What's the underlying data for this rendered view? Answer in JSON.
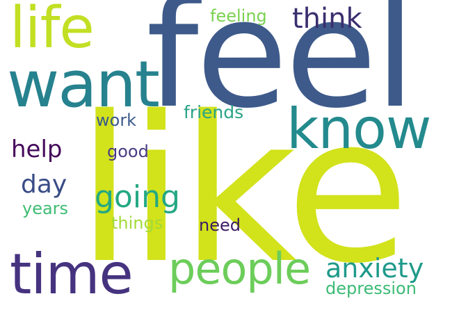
{
  "cloud": {
    "words": [
      {
        "id": "like",
        "text": "like",
        "color": "#d2e21b"
      },
      {
        "id": "feel",
        "text": "feel",
        "color": "#3e5a8a"
      },
      {
        "id": "want",
        "text": "want",
        "color": "#26828e"
      },
      {
        "id": "know",
        "text": "know",
        "color": "#238a8d"
      },
      {
        "id": "life",
        "text": "life",
        "color": "#c2df23"
      },
      {
        "id": "time",
        "text": "time",
        "color": "#46337f"
      },
      {
        "id": "people",
        "text": "people",
        "color": "#6ccd5a"
      },
      {
        "id": "anxiety",
        "text": "anxiety",
        "color": "#1f9a8a"
      },
      {
        "id": "going",
        "text": "going",
        "color": "#23a883"
      },
      {
        "id": "think",
        "text": "think",
        "color": "#3b2e6e"
      },
      {
        "id": "help",
        "text": "help",
        "color": "#450a5c"
      },
      {
        "id": "day",
        "text": "day",
        "color": "#3a4c87"
      },
      {
        "id": "feeling",
        "text": "feeling",
        "color": "#7ad151"
      },
      {
        "id": "friends",
        "text": "friends",
        "color": "#29a386"
      },
      {
        "id": "work",
        "text": "work",
        "color": "#3b5a8c"
      },
      {
        "id": "good",
        "text": "good",
        "color": "#4a3b82"
      },
      {
        "id": "years",
        "text": "years",
        "color": "#3fbc73"
      },
      {
        "id": "things",
        "text": "things",
        "color": "#a2da37"
      },
      {
        "id": "need",
        "text": "need",
        "color": "#3c1a64"
      },
      {
        "id": "depression",
        "text": "depression",
        "color": "#3bbb75"
      }
    ]
  }
}
